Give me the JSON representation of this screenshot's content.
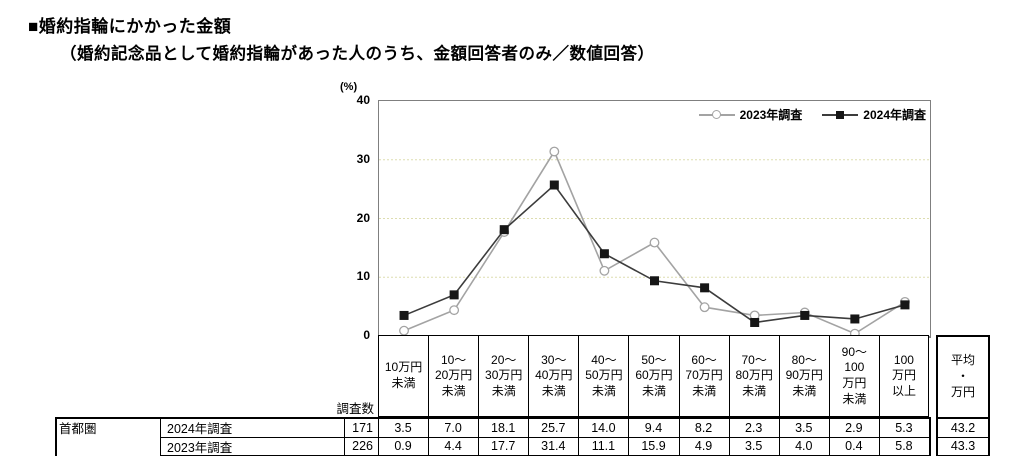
{
  "title": "■婚約指輪にかかった金額",
  "subtitle": "（婚約記念品として婚約指輪があった人のうち、金額回答者のみ／数値回答）",
  "chart_data": {
    "type": "line",
    "unit_label": "(%)",
    "ylim": [
      0,
      40
    ],
    "yticks": [
      0,
      10,
      20,
      30,
      40
    ],
    "grid": "horizontal dotted gridlines at 10, 20, 30",
    "grid_color": "#ddddb0",
    "legend_position": "top-right inside plot area",
    "categories": [
      "10万円未満",
      "10～20万円未満",
      "20～30万円未満",
      "30～40万円未満",
      "40～50万円未満",
      "50～60万円未満",
      "60～70万円未満",
      "70～80万円未満",
      "80～90万円未満",
      "90～100万円未満",
      "100万円以上"
    ],
    "series": [
      {
        "name": "2023年調査",
        "marker": "circle-open",
        "color": "#a3a3a3",
        "values": [
          0.9,
          4.4,
          17.7,
          31.4,
          11.1,
          15.9,
          4.9,
          3.5,
          4.0,
          0.4,
          5.8
        ]
      },
      {
        "name": "2024年調査",
        "marker": "square-filled",
        "color": "#3c3c3c",
        "marker_color": "#161616",
        "values": [
          3.5,
          7.0,
          18.1,
          25.7,
          14.0,
          9.4,
          8.2,
          2.3,
          3.5,
          2.9,
          5.3
        ]
      }
    ]
  },
  "table": {
    "count_header": "調査数",
    "column_headers": [
      "10万円\n未満",
      "10～\n20万円\n未満",
      "20～\n30万円\n未満",
      "30～\n40万円\n未満",
      "40～\n50万円\n未満",
      "50～\n60万円\n未満",
      "60～\n70万円\n未満",
      "70～\n80万円\n未満",
      "80～\n90万円\n未満",
      "90～\n100\n万円\n未満",
      "100\n万円\n以上"
    ],
    "avg_header": "平均\n・\n万円",
    "region_label": "首都圏",
    "rows": [
      {
        "survey": "2024年調査",
        "count": "171",
        "values": [
          "3.5",
          "7.0",
          "18.1",
          "25.7",
          "14.0",
          "9.4",
          "8.2",
          "2.3",
          "3.5",
          "2.9",
          "5.3"
        ],
        "average": "43.2"
      },
      {
        "survey": "2023年調査",
        "count": "226",
        "values": [
          "0.9",
          "4.4",
          "17.7",
          "31.4",
          "11.1",
          "15.9",
          "4.9",
          "3.5",
          "4.0",
          "0.4",
          "5.8"
        ],
        "average": "43.3"
      }
    ]
  }
}
